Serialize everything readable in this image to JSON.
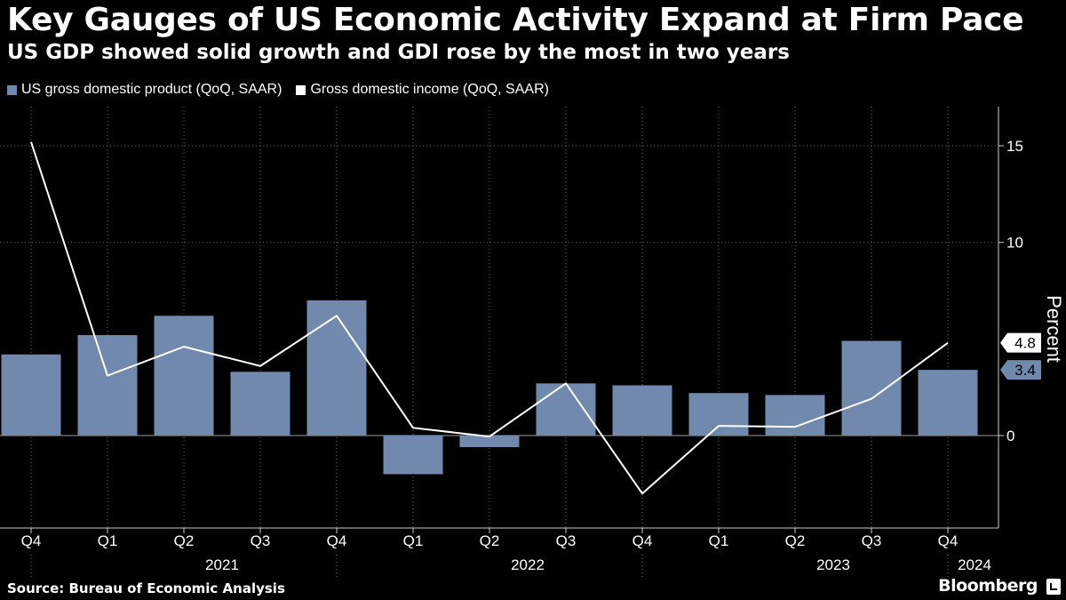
{
  "header": {
    "title": "Key Gauges of US Economic Activity Expand at Firm Pace",
    "subtitle": "US GDP showed solid growth and GDI rose by the most in two years"
  },
  "legend": {
    "gdp_label": "US gross domestic product (QoQ, SAAR)",
    "gdi_label": "Gross domestic income (QoQ, SAAR)"
  },
  "footer": {
    "source": "Source: Bureau of Economic Analysis",
    "brand": "Bloomberg"
  },
  "colors": {
    "background": "#000000",
    "gdp_bar": "#7189ad",
    "gdi_line": "#ffffff",
    "grid": "#6b6b6b",
    "text": "#ffffff"
  },
  "chart_data": {
    "type": "bar",
    "categories": [
      "Q4",
      "Q1",
      "Q2",
      "Q3",
      "Q4",
      "Q1",
      "Q2",
      "Q3",
      "Q4",
      "Q1",
      "Q2",
      "Q3",
      "Q4"
    ],
    "year_labels": [
      {
        "label": "2021",
        "span": [
          1,
          4
        ]
      },
      {
        "label": "2022",
        "span": [
          5,
          8
        ]
      },
      {
        "label": "2023",
        "span": [
          9,
          12
        ]
      },
      {
        "label": "2024",
        "span": [
          12,
          12
        ]
      }
    ],
    "series": [
      {
        "name": "US gross domestic product (QoQ, SAAR)",
        "kind": "bar",
        "values": [
          4.2,
          5.2,
          6.2,
          3.3,
          7.0,
          -2.0,
          -0.6,
          2.7,
          2.6,
          2.2,
          2.1,
          4.9,
          3.4
        ]
      },
      {
        "name": "Gross domestic income (QoQ, SAAR)",
        "kind": "line",
        "values": [
          15.2,
          3.1,
          4.6,
          3.6,
          6.2,
          0.4,
          -0.05,
          2.7,
          -3.0,
          0.5,
          0.45,
          1.9,
          4.8
        ]
      }
    ],
    "end_labels": {
      "gdi": "4.8",
      "gdp": "3.4"
    },
    "yticks": [
      0,
      10,
      15
    ],
    "ylim": [
      -4.7,
      17
    ],
    "ylabel": "Percent",
    "grid": true,
    "legend_position": "top-left"
  }
}
